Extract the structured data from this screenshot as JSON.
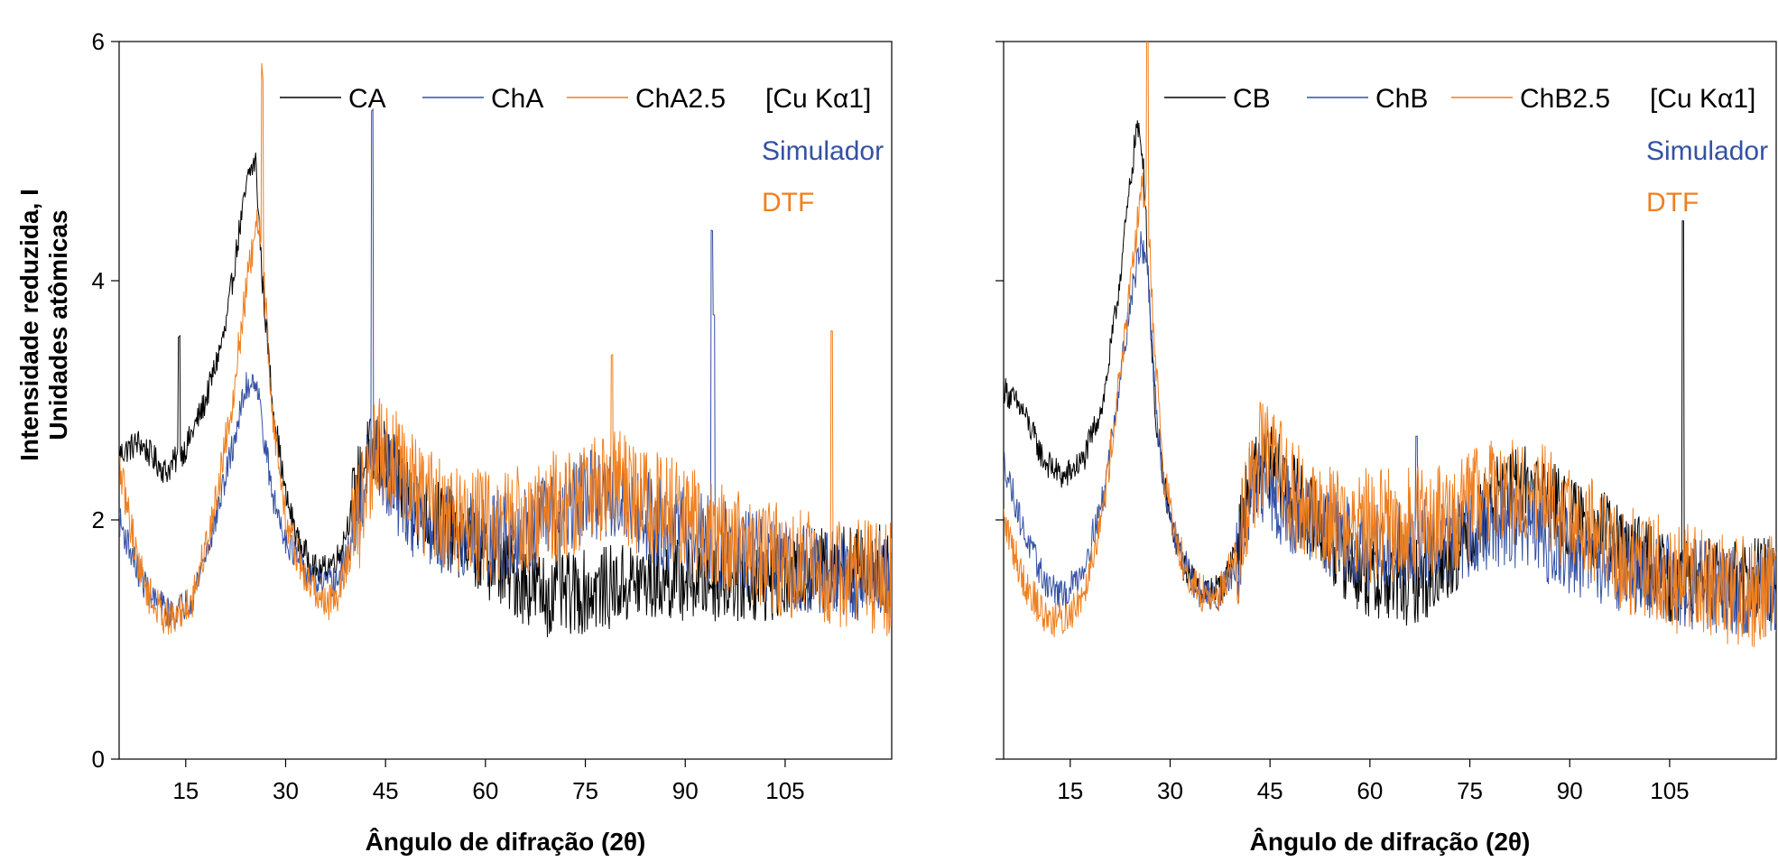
{
  "colors": {
    "black": "#000000",
    "blue": "#3451a3",
    "orange": "#f07f1e"
  },
  "ylabel_line1": "Intensidade reduzida, I",
  "ylabel_line2": "Unidades atômicas",
  "xlabel": "Ângulo de difração (2θ)",
  "chart_data": [
    {
      "type": "line",
      "panel": "left",
      "xlim": [
        5,
        121
      ],
      "ylim": [
        0,
        6
      ],
      "x_ticks": [
        15,
        30,
        45,
        60,
        75,
        90,
        105
      ],
      "x_tick_labels": [
        "15",
        "30",
        "45",
        "60",
        "75",
        "90",
        "105"
      ],
      "y_ticks": [
        0,
        2,
        4,
        6
      ],
      "y_tick_labels": [
        "0",
        "2",
        "4",
        "6"
      ],
      "legend": {
        "placement": "top-right",
        "note": "[Cu Kα1]",
        "items": [
          "CA",
          "ChA",
          "ChA2.5"
        ]
      },
      "annotations": [
        {
          "text": "Simulador",
          "color": "#3451a3"
        },
        {
          "text": "DTF",
          "color": "#f07f1e"
        }
      ],
      "series": [
        {
          "name": "CA",
          "color": "#000000",
          "noise": 0.22,
          "x": [
            5,
            8,
            12,
            15,
            18,
            21,
            23,
            24.5,
            25.5,
            26.5,
            28,
            30,
            32,
            35,
            38,
            40,
            42,
            44,
            46,
            50,
            55,
            60,
            65,
            70,
            75,
            80,
            85,
            90,
            95,
            100,
            105,
            110,
            115,
            121
          ],
          "y": [
            2.55,
            2.65,
            2.4,
            2.6,
            3.0,
            3.6,
            4.4,
            4.9,
            5.0,
            4.0,
            3.0,
            2.2,
            1.8,
            1.55,
            1.7,
            2.1,
            2.5,
            2.55,
            2.4,
            2.1,
            1.9,
            1.7,
            1.5,
            1.35,
            1.4,
            1.45,
            1.5,
            1.5,
            1.5,
            1.5,
            1.5,
            1.6,
            1.65,
            1.6
          ],
          "spikes": [
            [
              14,
              1.0
            ],
            [
              71,
              0.7
            ]
          ]
        },
        {
          "name": "ChA",
          "color": "#3451a3",
          "noise": 0.24,
          "x": [
            5,
            8,
            10,
            13,
            16,
            19,
            22,
            24,
            25.5,
            26.5,
            28,
            30,
            33,
            36,
            38,
            40,
            42,
            44,
            46,
            50,
            55,
            60,
            65,
            70,
            75,
            80,
            85,
            90,
            95,
            100,
            105,
            110,
            115,
            121
          ],
          "y": [
            2.0,
            1.55,
            1.35,
            1.2,
            1.35,
            1.9,
            2.6,
            3.1,
            3.2,
            2.8,
            2.2,
            1.85,
            1.55,
            1.45,
            1.5,
            1.85,
            2.35,
            2.5,
            2.3,
            2.0,
            1.9,
            1.85,
            1.9,
            2.0,
            2.2,
            2.2,
            2.0,
            1.9,
            1.8,
            1.7,
            1.65,
            1.55,
            1.5,
            1.5
          ],
          "spikes": [
            [
              43,
              3.0
            ],
            [
              94,
              2.6
            ],
            [
              94.3,
              1.9
            ]
          ]
        },
        {
          "name": "ChA2.5",
          "color": "#f07f1e",
          "noise": 0.3,
          "x": [
            5,
            8,
            10,
            13,
            16,
            19,
            22,
            24,
            25.5,
            26,
            27,
            28,
            30,
            33,
            36,
            38,
            40,
            42,
            44,
            46,
            50,
            55,
            60,
            65,
            70,
            75,
            80,
            85,
            90,
            95,
            100,
            105,
            110,
            115,
            121
          ],
          "y": [
            2.45,
            1.6,
            1.3,
            1.15,
            1.35,
            2.0,
            3.0,
            3.9,
            4.4,
            4.5,
            3.8,
            2.9,
            2.0,
            1.5,
            1.3,
            1.4,
            1.8,
            2.3,
            2.6,
            2.5,
            2.2,
            2.0,
            1.95,
            2.0,
            2.1,
            2.2,
            2.3,
            2.1,
            2.0,
            1.85,
            1.75,
            1.65,
            1.6,
            1.55,
            1.5
          ],
          "spikes": [
            [
              26.5,
              1.6
            ],
            [
              79,
              1.1
            ],
            [
              112,
              2.0
            ]
          ]
        }
      ]
    },
    {
      "type": "line",
      "panel": "right",
      "xlim": [
        5,
        121
      ],
      "ylim": [
        0,
        6
      ],
      "x_ticks": [
        15,
        30,
        45,
        60,
        75,
        90,
        105
      ],
      "x_tick_labels": [
        "15",
        "30",
        "45",
        "60",
        "75",
        "90",
        "105"
      ],
      "y_ticks": [
        0,
        2,
        4,
        6
      ],
      "y_tick_labels": [
        "",
        "",
        "",
        ""
      ],
      "legend": {
        "placement": "top-right",
        "note": "[Cu Kα1]",
        "items": [
          "CB",
          "ChB",
          "ChB2.5"
        ]
      },
      "annotations": [
        {
          "text": "Simulador",
          "color": "#3451a3"
        },
        {
          "text": "DTF",
          "color": "#f07f1e"
        }
      ],
      "series": [
        {
          "name": "CB",
          "color": "#000000",
          "noise": 0.22,
          "x": [
            5,
            8,
            11,
            14,
            17,
            20,
            22,
            24,
            25,
            26,
            27,
            28,
            30,
            32,
            35,
            38,
            40,
            42,
            44,
            46,
            50,
            55,
            60,
            65,
            70,
            75,
            80,
            85,
            90,
            95,
            100,
            105,
            110,
            115,
            121
          ],
          "y": [
            3.1,
            2.9,
            2.5,
            2.35,
            2.5,
            3.0,
            3.8,
            4.8,
            5.3,
            5.0,
            3.7,
            2.7,
            2.0,
            1.6,
            1.4,
            1.45,
            1.8,
            2.3,
            2.5,
            2.4,
            2.1,
            1.75,
            1.5,
            1.45,
            1.55,
            1.9,
            2.25,
            2.3,
            2.0,
            1.9,
            1.7,
            1.5,
            1.5,
            1.5,
            1.5
          ],
          "spikes": [
            [
              107,
              3.0
            ]
          ]
        },
        {
          "name": "ChB",
          "color": "#3451a3",
          "noise": 0.24,
          "x": [
            5,
            8,
            11,
            14,
            17,
            20,
            22,
            24,
            25.5,
            26.5,
            27.5,
            29,
            31,
            34,
            37,
            40,
            42,
            44,
            46,
            50,
            55,
            60,
            65,
            70,
            75,
            80,
            85,
            90,
            95,
            100,
            105,
            110,
            115,
            121
          ],
          "y": [
            2.5,
            1.9,
            1.5,
            1.35,
            1.6,
            2.2,
            3.0,
            3.8,
            4.3,
            4.2,
            3.2,
            2.3,
            1.8,
            1.4,
            1.35,
            1.6,
            2.1,
            2.35,
            2.2,
            2.0,
            1.85,
            1.8,
            1.8,
            1.8,
            1.9,
            2.0,
            1.9,
            1.75,
            1.65,
            1.55,
            1.5,
            1.45,
            1.4,
            1.4
          ],
          "spikes": [
            [
              67,
              0.9
            ]
          ]
        },
        {
          "name": "ChB2.5",
          "color": "#f07f1e",
          "noise": 0.3,
          "x": [
            5,
            8,
            11,
            14,
            17,
            20,
            22,
            24,
            25.5,
            26.5,
            27.5,
            29,
            31,
            34,
            37,
            40,
            42,
            44,
            46,
            50,
            55,
            60,
            65,
            70,
            75,
            80,
            85,
            90,
            95,
            100,
            105,
            110,
            115,
            121
          ],
          "y": [
            2.0,
            1.5,
            1.2,
            1.15,
            1.4,
            2.1,
            3.0,
            3.9,
            4.7,
            4.8,
            3.6,
            2.4,
            1.8,
            1.4,
            1.35,
            1.7,
            2.3,
            2.6,
            2.4,
            2.1,
            2.0,
            1.95,
            1.95,
            2.0,
            2.1,
            2.3,
            2.2,
            2.0,
            1.8,
            1.65,
            1.55,
            1.45,
            1.4,
            1.4
          ],
          "spikes": [
            [
              26.6,
              1.5
            ]
          ]
        }
      ]
    }
  ]
}
